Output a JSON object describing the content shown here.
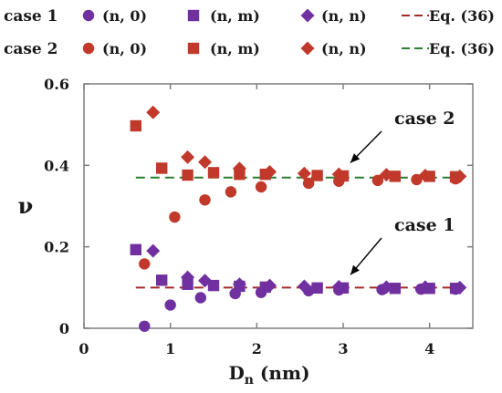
{
  "chart_data": {
    "type": "scatter",
    "xlabel": "D",
    "xlabel_sub": "n",
    "xlabel_unit": "(nm)",
    "ylabel": "ν",
    "xlim": [
      0,
      4.5
    ],
    "ylim": [
      0,
      0.6
    ],
    "xticks": [
      0,
      1,
      2,
      3,
      4
    ],
    "yticks": [
      0,
      0.2,
      0.4,
      0.6
    ],
    "grid": false,
    "legend": {
      "placement": "top",
      "groups": [
        {
          "label": "case 1",
          "entries": [
            {
              "series_index": 0,
              "label": "(n, 0)"
            },
            {
              "series_index": 1,
              "label": "(n, m)"
            },
            {
              "series_index": 2,
              "label": "(n, n)"
            },
            {
              "series_index": 3,
              "label": "Eq. (36)"
            }
          ]
        },
        {
          "label": "case 2",
          "entries": [
            {
              "series_index": 4,
              "label": "(n, 0)"
            },
            {
              "series_index": 5,
              "label": "(n, m)"
            },
            {
              "series_index": 6,
              "label": "(n, n)"
            },
            {
              "series_index": 7,
              "label": "Eq. (36)"
            }
          ]
        }
      ]
    },
    "annotations": [
      {
        "text": "case 2",
        "arrow_to": [
          3.0,
          0.375
        ]
      },
      {
        "text": "case 1",
        "arrow_to": [
          3.0,
          0.1
        ]
      }
    ],
    "series": [
      {
        "name": "(n, 0)",
        "group": "case 1",
        "marker": "circle",
        "color": "#7030a0",
        "x": [
          0.7,
          1.0,
          1.35,
          1.75,
          2.05,
          2.6,
          2.95,
          3.45,
          3.9,
          4.3
        ],
        "y": [
          0.005,
          0.057,
          0.075,
          0.085,
          0.088,
          0.092,
          0.094,
          0.095,
          0.096,
          0.096
        ]
      },
      {
        "name": "(n, m)",
        "group": "case 1",
        "marker": "square",
        "color": "#7030a0",
        "x": [
          0.6,
          0.9,
          1.2,
          1.5,
          1.8,
          2.1,
          2.7,
          3.0,
          3.6,
          4.0,
          4.3
        ],
        "y": [
          0.193,
          0.118,
          0.108,
          0.105,
          0.103,
          0.101,
          0.099,
          0.099,
          0.098,
          0.098,
          0.098
        ]
      },
      {
        "name": "(n, n)",
        "group": "case 1",
        "marker": "diamond",
        "color": "#7030a0",
        "x": [
          0.8,
          1.2,
          1.4,
          1.8,
          2.15,
          2.55,
          2.95,
          3.5,
          3.95,
          4.35
        ],
        "y": [
          0.19,
          0.125,
          0.117,
          0.108,
          0.105,
          0.103,
          0.102,
          0.101,
          0.101,
          0.1
        ]
      },
      {
        "name": "Eq. (36)",
        "group": "case 1",
        "marker": "dashed-line",
        "color": "#a52a2a",
        "x": [
          0.6,
          4.35
        ],
        "y": [
          0.1,
          0.1
        ]
      },
      {
        "name": "(n, 0)",
        "group": "case 2",
        "marker": "circle",
        "color": "#c0392b",
        "x": [
          0.7,
          1.05,
          1.4,
          1.7,
          2.05,
          2.6,
          2.95,
          3.4,
          3.85,
          4.3
        ],
        "y": [
          0.158,
          0.273,
          0.315,
          0.335,
          0.347,
          0.356,
          0.361,
          0.363,
          0.365,
          0.367
        ]
      },
      {
        "name": "(n, m)",
        "group": "case 2",
        "marker": "square",
        "color": "#c0392b",
        "x": [
          0.6,
          0.9,
          1.2,
          1.5,
          1.8,
          2.1,
          2.7,
          3.0,
          3.6,
          4.0,
          4.3
        ],
        "y": [
          0.497,
          0.393,
          0.376,
          0.382,
          0.378,
          0.378,
          0.375,
          0.374,
          0.373,
          0.373,
          0.372
        ]
      },
      {
        "name": "(n, n)",
        "group": "case 2",
        "marker": "diamond",
        "color": "#c0392b",
        "x": [
          0.8,
          1.2,
          1.4,
          1.8,
          2.15,
          2.55,
          2.95,
          3.5,
          3.95,
          4.35
        ],
        "y": [
          0.53,
          0.42,
          0.408,
          0.392,
          0.384,
          0.38,
          0.378,
          0.377,
          0.375,
          0.373
        ]
      },
      {
        "name": "Eq. (36)",
        "group": "case 2",
        "marker": "dashed-line",
        "color": "#2e7d32",
        "x": [
          0.6,
          4.35
        ],
        "y": [
          0.37,
          0.37
        ]
      }
    ]
  }
}
